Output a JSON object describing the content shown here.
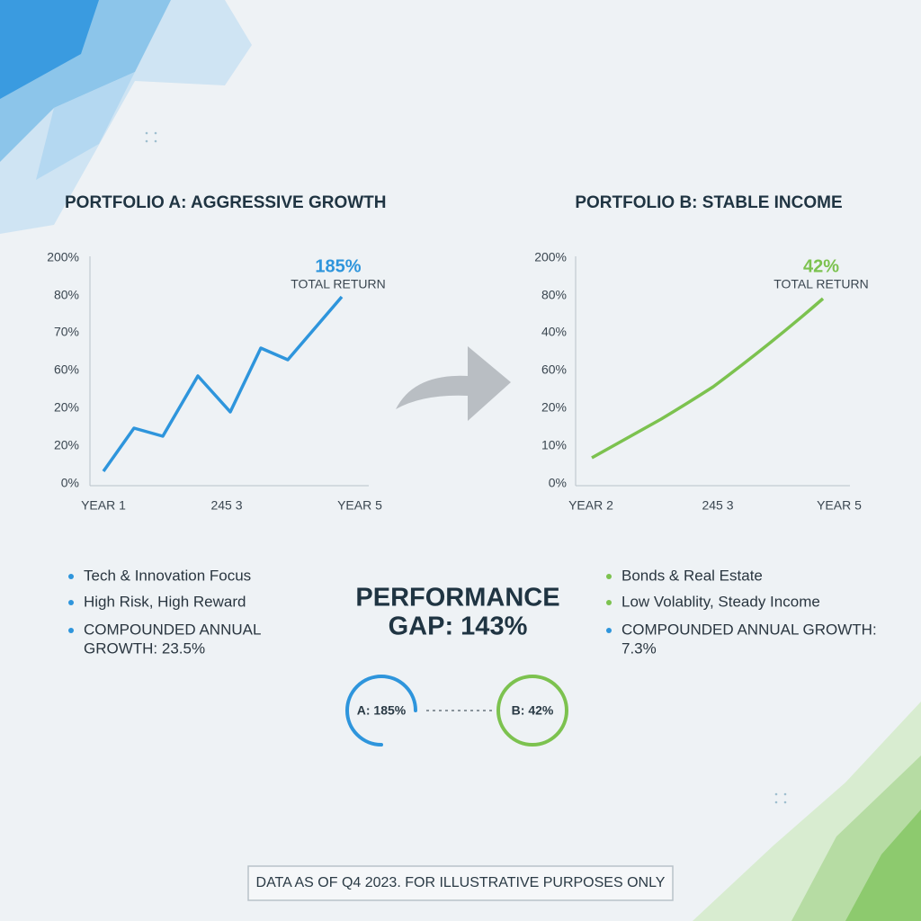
{
  "left_panel": {
    "title": "PORTFOLIO A: AGGRESSIVE GROWTH",
    "y_axis_labels": [
      "200%",
      "80%",
      "70%",
      "60%",
      "20%",
      "20%",
      "0%"
    ],
    "x_axis_labels": [
      "YEAR 1",
      "245 3",
      "YEAR 5"
    ],
    "callout_value": "185%",
    "callout_label": "TOTAL RETURN",
    "bullets": [
      {
        "lines": [
          "Tech & Innovation Focus"
        ]
      },
      {
        "lines": [
          "High Risk, High Reward"
        ]
      },
      {
        "lines": [
          "COMPOUNDED ANNUAL",
          "GROWTH: 23.5%"
        ]
      }
    ]
  },
  "right_panel": {
    "title": "PORTFOLIO B: STABLE INCOME",
    "y_axis_labels": [
      "200%",
      "80%",
      "40%",
      "60%",
      "20%",
      "10%",
      "0%"
    ],
    "x_axis_labels": [
      "YEAR 2",
      "245 3",
      "YEAR 5"
    ],
    "callout_value": "42%",
    "callout_label": "TOTAL RETURN",
    "bullets": [
      {
        "lines": [
          "Bonds & Real Estate"
        ]
      },
      {
        "lines": [
          "Low Volablity, Steady Income"
        ]
      },
      {
        "lines": [
          "COMPOUNDED ANNUAL GROWTH:",
          "7.3%"
        ]
      }
    ]
  },
  "gap": {
    "lines": [
      "PERFORMANCE",
      "GAP: 143%"
    ],
    "badge_a": "A: 185%",
    "badge_b": "B: 42%"
  },
  "footer": "DATA AS OF Q4 2023. FOR ILLUSTRATIVE PURPOSES ONLY"
}
